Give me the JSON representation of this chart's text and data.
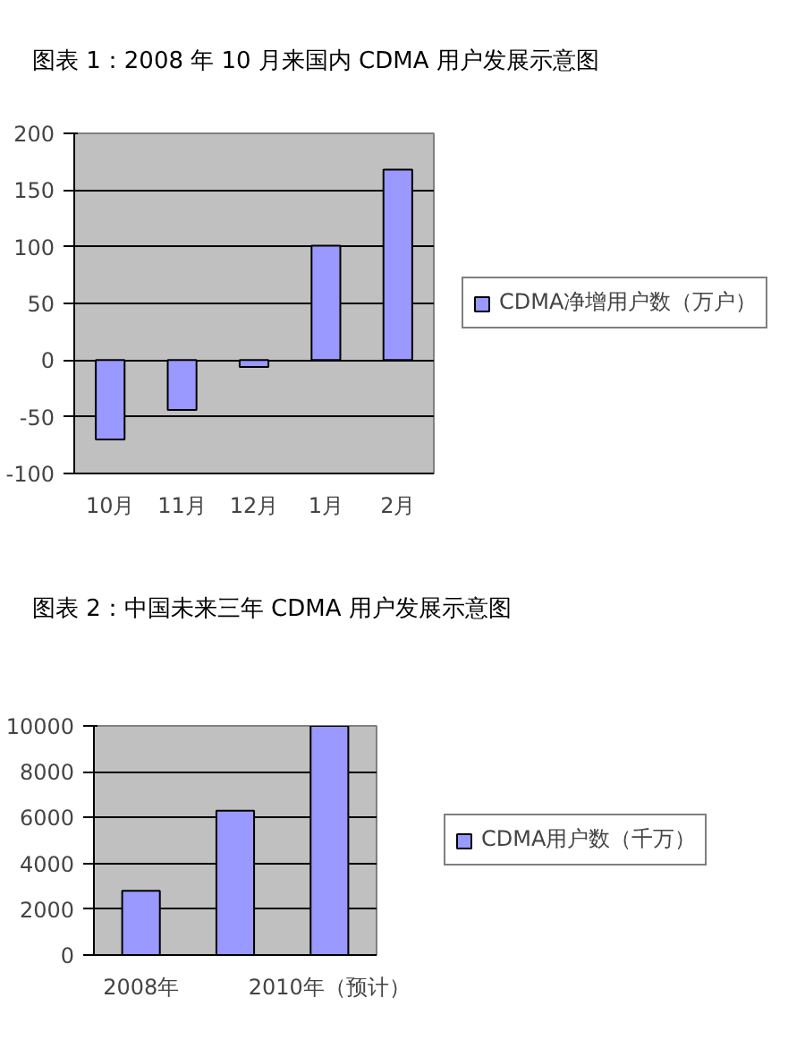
{
  "chart_data": [
    {
      "type": "bar",
      "title": "图表 1：2008 年 10 月来国内 CDMA 用户发展示意图",
      "categories": [
        "10月",
        "11月",
        "12月",
        "1月",
        "2月"
      ],
      "series": [
        {
          "name": "CDMA净增用户数（万户）",
          "color": "#9999ff",
          "values": [
            -70,
            -44,
            -6,
            101,
            168
          ]
        }
      ],
      "ylim": [
        -100,
        200
      ],
      "yticks": [
        -100,
        -50,
        0,
        50,
        100,
        150,
        200
      ],
      "grid": "y",
      "legend": "right"
    },
    {
      "type": "bar",
      "title": "图表 2：中国未来三年 CDMA 用户发展示意图",
      "categories": [
        "2008年",
        null,
        "2010年（预计）"
      ],
      "series": [
        {
          "name": "CDMA用户数（千万）",
          "color": "#9999ff",
          "values": [
            2800,
            6300,
            10000
          ]
        }
      ],
      "ylim": [
        0,
        10000
      ],
      "yticks": [
        0,
        2000,
        4000,
        6000,
        8000,
        10000
      ],
      "grid": "y",
      "legend": "right"
    }
  ]
}
